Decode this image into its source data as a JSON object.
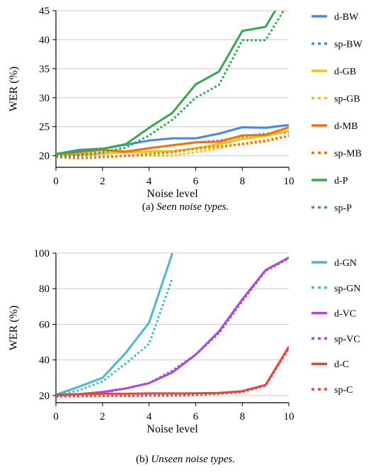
{
  "captions": [
    {
      "prefix": "(a) ",
      "text": "Seen noise types."
    },
    {
      "prefix": "(b) ",
      "text": "Unseen noise types."
    }
  ],
  "chart_data": [
    {
      "type": "line",
      "xlabel": "Noise level",
      "ylabel": "WER (%)",
      "xlim": [
        0,
        10
      ],
      "ylim": [
        18,
        45
      ],
      "xticks": [
        0,
        2,
        4,
        6,
        8,
        10
      ],
      "yticks": [
        20,
        25,
        30,
        35,
        40,
        45
      ],
      "grid": "horizontal",
      "legend_position": "right",
      "x": [
        0,
        1,
        2,
        3,
        4,
        5,
        6,
        7,
        8,
        9,
        10
      ],
      "series": [
        {
          "name": "d-BW",
          "color": "#4a86e8",
          "style": "solid",
          "values": [
            20.3,
            21.0,
            21.2,
            21.9,
            22.6,
            23.0,
            23.0,
            23.8,
            24.9,
            24.8,
            25.3
          ]
        },
        {
          "name": "sp-BW",
          "color": "#4a86e8",
          "style": "dotted",
          "values": [
            20.0,
            20.0,
            20.3,
            20.7,
            21.3,
            21.8,
            22.3,
            22.6,
            23.3,
            23.8,
            24.0
          ]
        },
        {
          "name": "d-GB",
          "color": "#f6c000",
          "style": "solid",
          "values": [
            20.3,
            20.2,
            20.4,
            20.6,
            20.7,
            20.8,
            21.3,
            22.0,
            22.9,
            23.4,
            24.3
          ]
        },
        {
          "name": "sp-GB",
          "color": "#f6c000",
          "style": "dotted",
          "values": [
            19.7,
            19.5,
            19.7,
            19.9,
            20.0,
            20.0,
            20.6,
            21.3,
            22.1,
            22.7,
            23.5
          ]
        },
        {
          "name": "d-MB",
          "color": "#ff6d01",
          "style": "solid",
          "values": [
            20.3,
            20.6,
            21.0,
            20.7,
            21.3,
            21.8,
            22.3,
            22.4,
            23.5,
            23.6,
            24.9
          ]
        },
        {
          "name": "sp-MB",
          "color": "#ff6d01",
          "style": "dotted",
          "values": [
            19.8,
            19.6,
            19.8,
            20.0,
            20.3,
            20.6,
            21.2,
            21.6,
            22.0,
            22.5,
            23.4
          ]
        },
        {
          "name": "d-P",
          "color": "#34a853",
          "style": "solid",
          "values": [
            20.3,
            20.8,
            21.2,
            22.0,
            24.8,
            27.4,
            32.3,
            34.5,
            41.5,
            42.2,
            49.0
          ]
        },
        {
          "name": "sp-P",
          "color": "#34a853",
          "style": "dotted",
          "values": [
            19.9,
            20.2,
            20.6,
            21.4,
            23.5,
            26.2,
            30.0,
            32.2,
            39.9,
            39.9,
            46.5
          ]
        }
      ]
    },
    {
      "type": "line",
      "xlabel": "Noise level",
      "ylabel": "WER (%)",
      "xlim": [
        0,
        10
      ],
      "ylim": [
        16,
        100
      ],
      "xticks": [
        0,
        2,
        4,
        6,
        8,
        10
      ],
      "yticks": [
        20,
        40,
        60,
        80,
        100
      ],
      "grid": "horizontal",
      "legend_position": "right",
      "x": [
        0,
        1,
        2,
        3,
        4,
        5,
        6,
        7,
        8,
        9,
        10
      ],
      "series": [
        {
          "name": "d-GN",
          "color": "#46bdc6",
          "style": "solid",
          "values": [
            20.5,
            25.0,
            30.0,
            44.0,
            61.0,
            100.0,
            null,
            null,
            null,
            null,
            null
          ]
        },
        {
          "name": "sp-GN",
          "color": "#46bdc6",
          "style": "dotted",
          "values": [
            20.0,
            23.0,
            28.0,
            38.0,
            49.0,
            86.0,
            null,
            null,
            null,
            null,
            null
          ]
        },
        {
          "name": "d-VC",
          "color": "#a84bdc",
          "style": "solid",
          "values": [
            20.0,
            20.8,
            22.0,
            24.0,
            27.0,
            33.0,
            43.0,
            56.0,
            74.0,
            90.5,
            97.5
          ]
        },
        {
          "name": "sp-VC",
          "color": "#a84bdc",
          "style": "dotted",
          "values": [
            19.5,
            20.0,
            21.5,
            24.0,
            27.0,
            34.0,
            43.0,
            55.0,
            73.0,
            90.0,
            97.0
          ]
        },
        {
          "name": "d-C",
          "color": "#e8453c",
          "style": "solid",
          "values": [
            20.5,
            20.8,
            21.0,
            21.0,
            21.2,
            21.2,
            21.3,
            21.5,
            22.5,
            26.0,
            47.5
          ]
        },
        {
          "name": "sp-C",
          "color": "#e8453c",
          "style": "dotted",
          "values": [
            19.5,
            19.6,
            19.7,
            19.8,
            20.0,
            20.0,
            20.3,
            21.0,
            22.0,
            25.5,
            46.5
          ]
        }
      ]
    }
  ]
}
